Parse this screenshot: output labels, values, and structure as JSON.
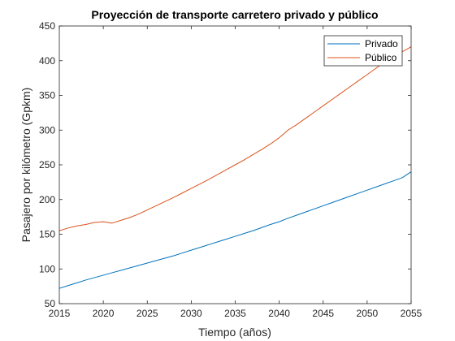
{
  "chart_data": {
    "type": "line",
    "title": "Proyección de transporte carretero privado y público",
    "xlabel": "Tiempo (años)",
    "ylabel": "Pasajero por kilómetro (Gpkm)",
    "xlim": [
      2015,
      2055
    ],
    "ylim": [
      50,
      450
    ],
    "xticks": [
      2015,
      2020,
      2025,
      2030,
      2035,
      2040,
      2045,
      2050,
      2055
    ],
    "yticks": [
      50,
      100,
      150,
      200,
      250,
      300,
      350,
      400,
      450
    ],
    "grid": false,
    "legend_position": "top-right",
    "series": [
      {
        "name": "Privado",
        "color": "#0072BD",
        "x": [
          2015,
          2016,
          2017,
          2018,
          2019,
          2020,
          2021,
          2022,
          2023,
          2024,
          2025,
          2026,
          2027,
          2028,
          2029,
          2030,
          2031,
          2032,
          2033,
          2034,
          2035,
          2036,
          2037,
          2038,
          2039,
          2040,
          2041,
          2042,
          2043,
          2044,
          2045,
          2046,
          2047,
          2048,
          2049,
          2050,
          2051,
          2052,
          2053,
          2054,
          2055
        ],
        "y": [
          72,
          76,
          80,
          84,
          87.5,
          91,
          94.5,
          98,
          101.5,
          105,
          108.5,
          112,
          115.5,
          119,
          123,
          127,
          131,
          135,
          139,
          143,
          147,
          151,
          155,
          159.5,
          164,
          168,
          173,
          177.5,
          182,
          186.5,
          191,
          195.5,
          200,
          204.5,
          209,
          213.5,
          218,
          222.5,
          227,
          231.5,
          240
        ]
      },
      {
        "name": "Público",
        "color": "#D95319",
        "x": [
          2015,
          2016,
          2017,
          2018,
          2019,
          2020,
          2021,
          2022,
          2023,
          2024,
          2025,
          2026,
          2027,
          2028,
          2029,
          2030,
          2031,
          2032,
          2033,
          2034,
          2035,
          2036,
          2037,
          2038,
          2039,
          2040,
          2041,
          2042,
          2043,
          2044,
          2045,
          2046,
          2047,
          2048,
          2049,
          2050,
          2051,
          2052,
          2053,
          2054,
          2055
        ],
        "y": [
          155,
          159,
          162,
          164,
          167,
          168,
          166,
          170,
          174,
          179,
          185,
          191,
          197,
          203,
          209.5,
          216,
          222.5,
          229,
          236,
          243,
          250,
          257,
          264.5,
          272,
          280,
          289,
          300,
          308,
          317,
          326,
          335,
          344,
          353,
          362,
          371,
          380,
          389,
          398,
          407,
          413,
          420
        ]
      }
    ]
  }
}
